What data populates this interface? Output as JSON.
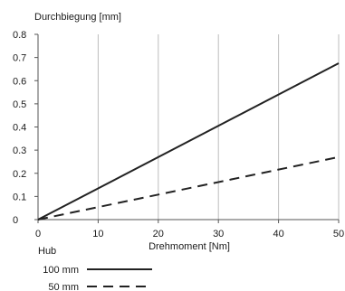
{
  "chart_data": {
    "type": "line",
    "ylabel": "Durchbiegung [mm]",
    "xlabel": "Drehmoment [Nm]",
    "xlim": [
      0,
      50
    ],
    "ylim": [
      0,
      0.8
    ],
    "x_ticks": [
      "0",
      "10",
      "20",
      "30",
      "40",
      "50"
    ],
    "y_ticks": [
      "0",
      "0.1",
      "0.2",
      "0.3",
      "0.4",
      "0.5",
      "0.6",
      "0.7",
      "0.8"
    ],
    "grid": "vertical",
    "legend_title": "Hub",
    "legend_position": "bottom-left",
    "series": [
      {
        "name": "100 mm",
        "style": "solid",
        "color": "#222222",
        "x": [
          0,
          50
        ],
        "y": [
          0,
          0.675
        ]
      },
      {
        "name": "50 mm",
        "style": "dashed",
        "color": "#222222",
        "x": [
          0,
          50
        ],
        "y": [
          0,
          0.27
        ]
      }
    ]
  }
}
